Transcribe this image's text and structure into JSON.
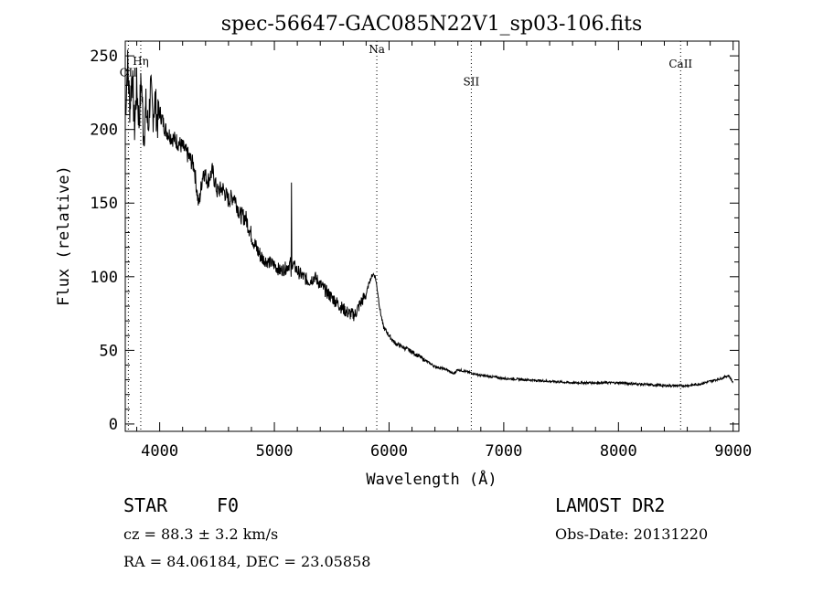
{
  "chart_data": {
    "type": "line",
    "title": "spec-56647-GAC085N22V1_sp03-106.fits",
    "xlabel": "Wavelength (Å)",
    "ylabel": "Flux (relative)",
    "xlim": [
      3700,
      9050
    ],
    "ylim": [
      -5,
      260
    ],
    "xticks": [
      4000,
      5000,
      6000,
      7000,
      8000,
      9000
    ],
    "yticks": [
      0,
      50,
      100,
      150,
      200,
      250
    ],
    "grid": false,
    "line_color": "#000000",
    "series": [
      {
        "x": [
          3700,
          3720,
          3740,
          3760,
          3780,
          3800,
          3820,
          3840,
          3860,
          3880,
          3900,
          3920,
          3940,
          3960,
          3980,
          4000,
          4050,
          4100,
          4150,
          4200,
          4250,
          4300,
          4340,
          4380,
          4420,
          4460,
          4500,
          4550,
          4600,
          4650,
          4700,
          4750,
          4800,
          4850,
          4900,
          4950,
          5000,
          5050,
          5100,
          5150,
          5200,
          5250,
          5300,
          5350,
          5400,
          5450,
          5500,
          5550,
          5600,
          5650,
          5700,
          5750,
          5800,
          5830,
          5860,
          5880,
          5900,
          5920,
          5950,
          6000,
          6050,
          6100,
          6150,
          6200,
          6300,
          6400,
          6500,
          6560,
          6600,
          6700,
          6800,
          6900,
          7000,
          7200,
          7400,
          7600,
          7800,
          8000,
          8200,
          8400,
          8500,
          8600,
          8700,
          8800,
          8900,
          8960,
          9000
        ],
        "y": [
          210,
          245,
          215,
          240,
          200,
          230,
          205,
          235,
          195,
          215,
          200,
          228,
          210,
          220,
          205,
          212,
          200,
          195,
          192,
          188,
          182,
          175,
          148,
          172,
          165,
          172,
          158,
          160,
          152,
          155,
          142,
          140,
          128,
          118,
          112,
          110,
          108,
          104,
          106,
          110,
          104,
          100,
          97,
          100,
          95,
          90,
          86,
          82,
          78,
          75,
          74,
          82,
          88,
          97,
          102,
          100,
          90,
          78,
          66,
          60,
          55,
          53,
          51,
          49,
          44,
          39,
          37,
          34,
          37,
          35,
          33,
          32,
          31,
          30,
          29,
          28,
          28,
          28,
          27,
          26,
          26,
          26,
          27,
          29,
          31,
          33,
          28
        ],
        "spikes": [
          {
            "x": 5150,
            "y": 164
          },
          {
            "x": 5145,
            "y": 100
          }
        ]
      }
    ],
    "annotations": [
      {
        "label": "OII",
        "x": 3727,
        "y": 236
      },
      {
        "label": "Hη",
        "x": 3835,
        "y": 244
      },
      {
        "label": "Na",
        "x": 5893,
        "y": 252
      },
      {
        "label": "SII",
        "x": 6717,
        "y": 230
      },
      {
        "label": "CaII",
        "x": 8542,
        "y": 242
      }
    ],
    "lines_dotted": [
      3727,
      3835,
      5893,
      6717,
      8542
    ]
  },
  "footer": {
    "object_class": "STAR",
    "subclass": "F0",
    "survey": "LAMOST DR2",
    "cz": "cz = 88.3 ± 3.2 km/s",
    "obs_date": "Obs-Date: 20131220",
    "coords": "RA =  84.06184, DEC =  23.05858"
  }
}
